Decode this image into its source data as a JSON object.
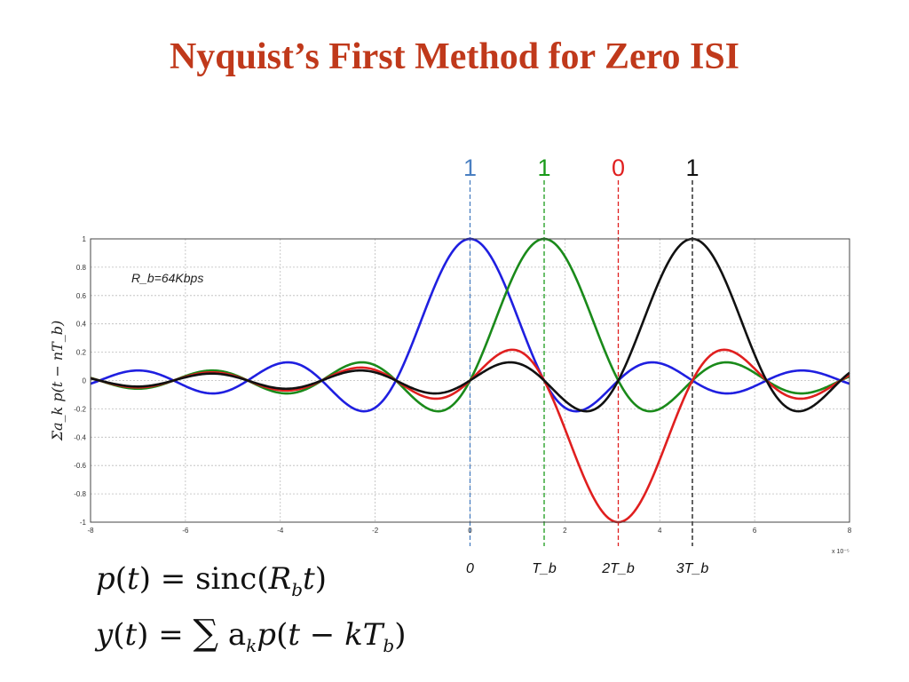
{
  "slide": {
    "title": "Nyquist’s First Method for Zero ISI",
    "formula_1": "p(t) = sinc(R_b t)",
    "formula_2": "y(t) = Σ a_k p(t − kT_b)"
  },
  "chart_data": {
    "type": "line",
    "title": "",
    "xlabel": "",
    "ylabel": "Σa_k p(t − nT_b)",
    "x_exponent_label": "x 10⁻⁵",
    "xlim": [
      -8,
      8
    ],
    "ylim": [
      -1,
      1
    ],
    "xticks": [
      -8,
      -6,
      -4,
      -2,
      0,
      2,
      4,
      6,
      8
    ],
    "xtick_labels": [
      "-8",
      "-6",
      "-4",
      "-2",
      "0",
      "2",
      "4",
      "6",
      "8"
    ],
    "yticks": [
      -1,
      -0.8,
      -0.6,
      -0.4,
      -0.2,
      0,
      0.2,
      0.4,
      0.6,
      0.8,
      1
    ],
    "ytick_labels": [
      "-1",
      "-0.8",
      "-0.6",
      "-0.4",
      "-0.2",
      "0",
      "0.2",
      "0.4",
      "0.6",
      "0.8",
      "1"
    ],
    "grid": true,
    "annotation": "R_b=64Kbps",
    "bit_rate_kbps": 64,
    "bit_period_x": 1.5625,
    "series": [
      {
        "color": "#1f1fe0",
        "center": 0,
        "amplitude": 1
      },
      {
        "color": "#1a8a1a",
        "center": 1.5625,
        "amplitude": 1
      },
      {
        "color": "#e01f1f",
        "center": 3.125,
        "amplitude": -1
      },
      {
        "color": "#111111",
        "center": 4.6875,
        "amplitude": 1
      }
    ],
    "sample_markers": [
      {
        "bit": "1",
        "time_label": "0",
        "x": 0,
        "color": "#4a7fc1"
      },
      {
        "bit": "1",
        "time_label": "T_b",
        "x": 1.5625,
        "color": "#1a9a1a"
      },
      {
        "bit": "0",
        "time_label": "2T_b",
        "x": 3.125,
        "color": "#e01f1f"
      },
      {
        "bit": "1",
        "time_label": "3T_b",
        "x": 4.6875,
        "color": "#111111"
      }
    ]
  }
}
